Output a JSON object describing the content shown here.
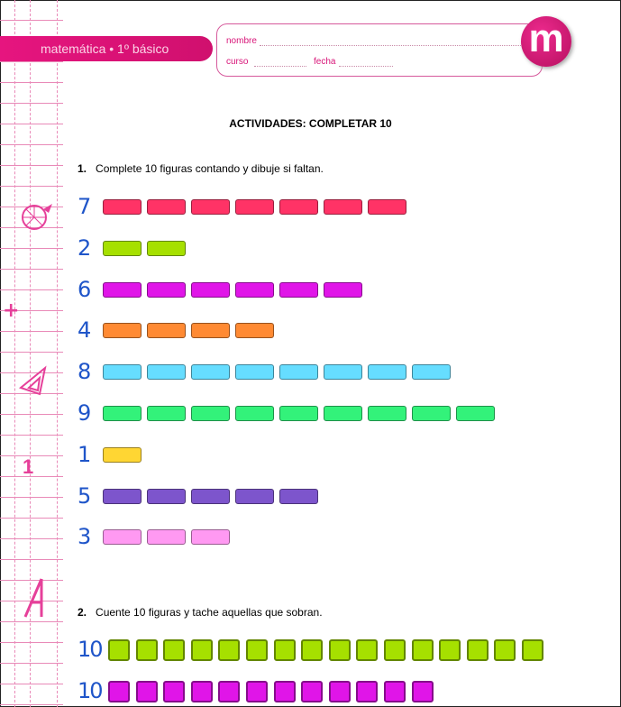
{
  "header": {
    "subject": "matemática • 1º básico",
    "name_label": "nombre",
    "course_label": "curso",
    "date_label": "fecha",
    "logo_letter": "m"
  },
  "title": "ACTIVIDADES: COMPLETAR 10",
  "q1": {
    "number": "1.",
    "text": "Complete 10 figuras contando y  dibuje si faltan.",
    "rows": [
      {
        "label": "7",
        "count": 7,
        "color": "#ff3366"
      },
      {
        "label": "2",
        "count": 2,
        "color": "#a6e000"
      },
      {
        "label": "6",
        "count": 6,
        "color": "#e015e8"
      },
      {
        "label": "4",
        "count": 4,
        "color": "#ff8a33"
      },
      {
        "label": "8",
        "count": 8,
        "color": "#66ddff"
      },
      {
        "label": "9",
        "count": 9,
        "color": "#33f27a"
      },
      {
        "label": "1",
        "count": 1,
        "color": "#ffd633"
      },
      {
        "label": "5",
        "count": 5,
        "color": "#7d55cc"
      },
      {
        "label": "3",
        "count": 3,
        "color": "#ff99f2"
      }
    ]
  },
  "q2": {
    "number": "2.",
    "text": "Cuente 10 figuras y tache aquellas que sobran.",
    "rows": [
      {
        "label": "10",
        "count": 16,
        "color": "#a6e000"
      },
      {
        "label": "10",
        "count": 12,
        "color": "#e015e8"
      }
    ]
  },
  "margin_icons": [
    "pizza-icon",
    "plus-icon",
    "set-square-icon",
    "number-one-icon",
    "compass-icon"
  ],
  "margin_one": "1"
}
